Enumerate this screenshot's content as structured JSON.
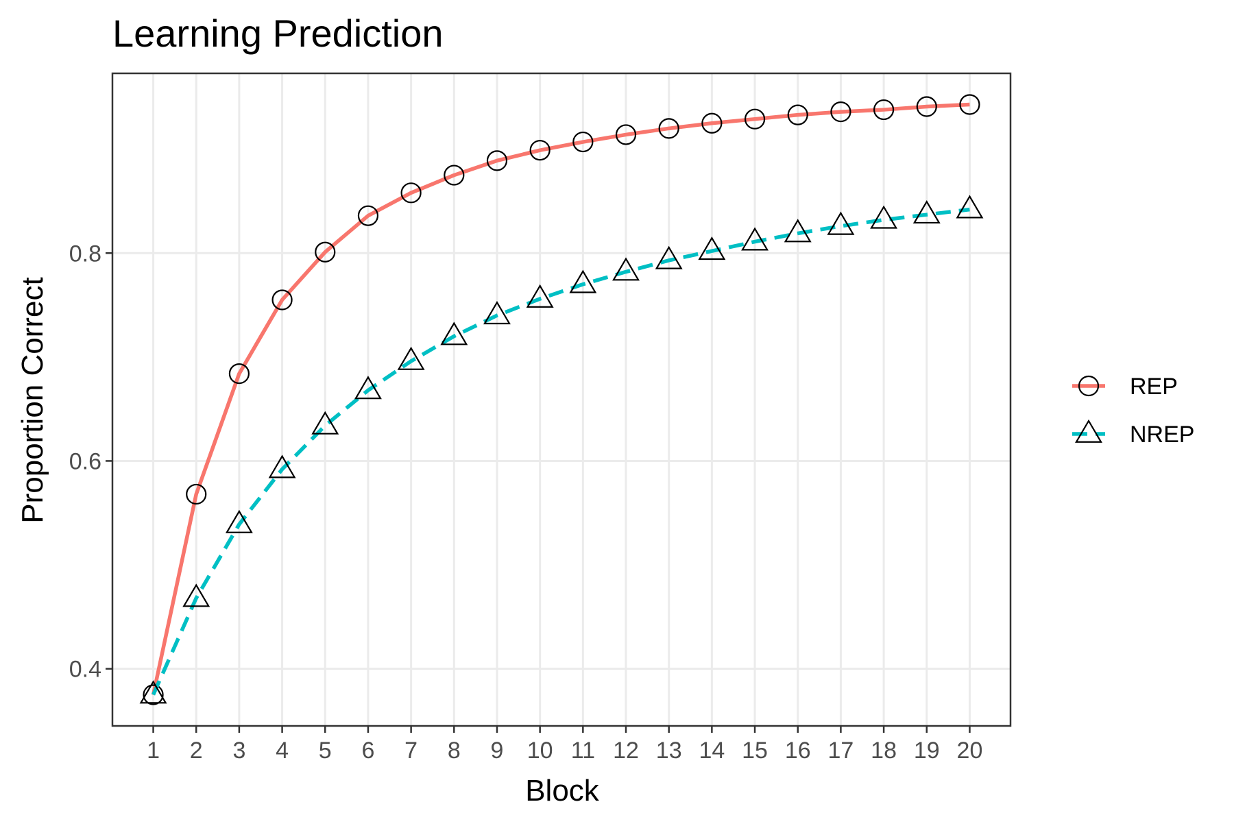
{
  "chart_data": {
    "type": "line",
    "title": "Learning Prediction",
    "xlabel": "Block",
    "ylabel": "Proportion Correct",
    "x": [
      1,
      2,
      3,
      4,
      5,
      6,
      7,
      8,
      9,
      10,
      11,
      12,
      13,
      14,
      15,
      16,
      17,
      18,
      19,
      20
    ],
    "x_tick_labels": [
      "1",
      "2",
      "3",
      "4",
      "5",
      "6",
      "7",
      "8",
      "9",
      "10",
      "11",
      "12",
      "13",
      "14",
      "15",
      "16",
      "17",
      "18",
      "19",
      "20"
    ],
    "y_ticks": [
      0.4,
      0.6,
      0.8
    ],
    "y_tick_labels": [
      "0.4",
      "0.6",
      "0.8"
    ],
    "xlim": [
      0.05,
      20.95
    ],
    "ylim": [
      0.345,
      0.973
    ],
    "grid": true,
    "legend_position": "right",
    "series": [
      {
        "name": "REP",
        "color": "#F8766D",
        "line_style": "solid",
        "marker": "circle",
        "values": [
          0.375,
          0.568,
          0.684,
          0.755,
          0.801,
          0.836,
          0.858,
          0.875,
          0.889,
          0.899,
          0.907,
          0.914,
          0.92,
          0.925,
          0.929,
          0.933,
          0.936,
          0.938,
          0.941,
          0.943
        ]
      },
      {
        "name": "NREP",
        "color": "#00BFC4",
        "line_style": "dashed",
        "marker": "triangle",
        "values": [
          0.375,
          0.468,
          0.539,
          0.592,
          0.634,
          0.668,
          0.696,
          0.72,
          0.74,
          0.756,
          0.77,
          0.782,
          0.793,
          0.802,
          0.811,
          0.819,
          0.826,
          0.832,
          0.837,
          0.842
        ]
      }
    ]
  }
}
